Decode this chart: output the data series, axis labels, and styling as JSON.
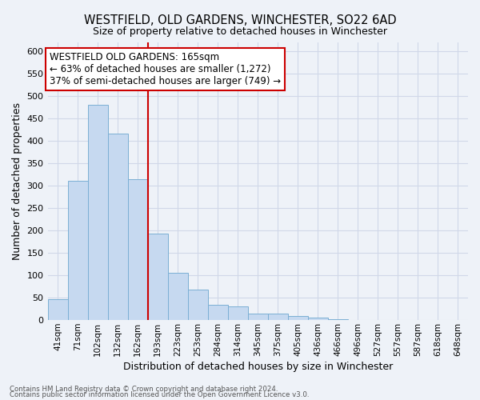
{
  "title": "WESTFIELD, OLD GARDENS, WINCHESTER, SO22 6AD",
  "subtitle": "Size of property relative to detached houses in Winchester",
  "xlabel": "Distribution of detached houses by size in Winchester",
  "ylabel": "Number of detached properties",
  "bar_labels": [
    "41sqm",
    "71sqm",
    "102sqm",
    "132sqm",
    "162sqm",
    "193sqm",
    "223sqm",
    "253sqm",
    "284sqm",
    "314sqm",
    "345sqm",
    "375sqm",
    "405sqm",
    "436sqm",
    "466sqm",
    "496sqm",
    "527sqm",
    "557sqm",
    "587sqm",
    "618sqm",
    "648sqm"
  ],
  "bar_values": [
    47,
    310,
    480,
    415,
    315,
    192,
    105,
    68,
    35,
    30,
    14,
    14,
    10,
    5,
    2,
    1,
    0,
    0,
    0,
    0,
    1
  ],
  "bar_color": "#c6d9f0",
  "bar_edge_color": "#7bafd4",
  "vline_x": 4,
  "vline_color": "#cc0000",
  "ylim": [
    0,
    620
  ],
  "yticks": [
    0,
    50,
    100,
    150,
    200,
    250,
    300,
    350,
    400,
    450,
    500,
    550,
    600
  ],
  "annotation_title": "WESTFIELD OLD GARDENS: 165sqm",
  "annotation_line1": "← 63% of detached houses are smaller (1,272)",
  "annotation_line2": "37% of semi-detached houses are larger (749) →",
  "annotation_box_color": "#ffffff",
  "annotation_box_edge": "#cc0000",
  "footer1": "Contains HM Land Registry data © Crown copyright and database right 2024.",
  "footer2": "Contains public sector information licensed under the Open Government Licence v3.0.",
  "grid_color": "#d0d8e8",
  "background_color": "#eef2f8",
  "title_fontsize": 10.5,
  "subtitle_fontsize": 9
}
